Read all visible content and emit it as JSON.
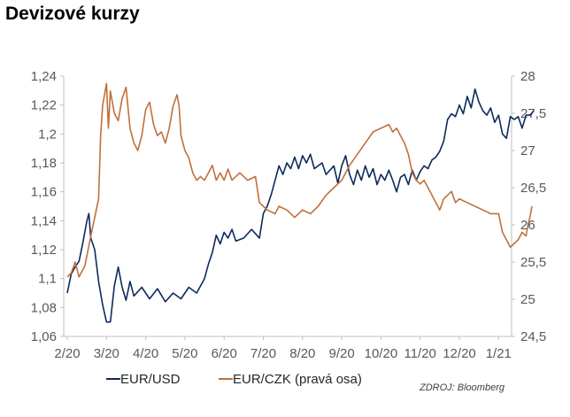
{
  "page": {
    "title": "Devizové kurzy"
  },
  "colors": {
    "eur_usd": "#0d2a5c",
    "eur_czk": "#c0703a",
    "axis": "#bfbfbf",
    "tick_text": "#595959"
  },
  "chart_data": {
    "type": "line",
    "title": "Devizové kurzy",
    "source": "ZDROJ: Bloomberg",
    "x_ticks": [
      "2/20",
      "3/20",
      "4/20",
      "5/20",
      "6/20",
      "7/20",
      "8/20",
      "9/20",
      "10/20",
      "11/20",
      "12/20",
      "1/21"
    ],
    "x_range": [
      0,
      11.9
    ],
    "y_left": {
      "ticks": [
        "1,06",
        "1,08",
        "1,1",
        "1,12",
        "1,14",
        "1,16",
        "1,18",
        "1,2",
        "1,22",
        "1,24"
      ],
      "range": [
        1.06,
        1.24
      ]
    },
    "y_right": {
      "ticks": [
        "24,5",
        "25",
        "25,5",
        "26",
        "26,5",
        "27",
        "27,5",
        "28"
      ],
      "range": [
        24.5,
        28.0
      ]
    },
    "grid": false,
    "legend_position": "bottom",
    "series": [
      {
        "name": "EUR/USD",
        "axis": "left",
        "color": "#0d2a5c",
        "points": [
          [
            0.0,
            1.09
          ],
          [
            0.1,
            1.103
          ],
          [
            0.2,
            1.108
          ],
          [
            0.3,
            1.112
          ],
          [
            0.4,
            1.125
          ],
          [
            0.5,
            1.14
          ],
          [
            0.55,
            1.145
          ],
          [
            0.6,
            1.128
          ],
          [
            0.7,
            1.12
          ],
          [
            0.8,
            1.098
          ],
          [
            0.9,
            1.082
          ],
          [
            1.0,
            1.07
          ],
          [
            1.1,
            1.07
          ],
          [
            1.2,
            1.095
          ],
          [
            1.3,
            1.108
          ],
          [
            1.4,
            1.094
          ],
          [
            1.5,
            1.085
          ],
          [
            1.6,
            1.098
          ],
          [
            1.7,
            1.088
          ],
          [
            1.9,
            1.094
          ],
          [
            2.1,
            1.086
          ],
          [
            2.3,
            1.093
          ],
          [
            2.5,
            1.084
          ],
          [
            2.7,
            1.09
          ],
          [
            2.9,
            1.086
          ],
          [
            3.1,
            1.094
          ],
          [
            3.3,
            1.09
          ],
          [
            3.5,
            1.1
          ],
          [
            3.6,
            1.11
          ],
          [
            3.7,
            1.118
          ],
          [
            3.8,
            1.13
          ],
          [
            3.9,
            1.124
          ],
          [
            4.0,
            1.132
          ],
          [
            4.1,
            1.128
          ],
          [
            4.2,
            1.134
          ],
          [
            4.3,
            1.126
          ],
          [
            4.5,
            1.128
          ],
          [
            4.7,
            1.134
          ],
          [
            4.9,
            1.128
          ],
          [
            5.0,
            1.145
          ],
          [
            5.1,
            1.15
          ],
          [
            5.2,
            1.158
          ],
          [
            5.3,
            1.168
          ],
          [
            5.4,
            1.178
          ],
          [
            5.5,
            1.172
          ],
          [
            5.6,
            1.18
          ],
          [
            5.7,
            1.176
          ],
          [
            5.8,
            1.184
          ],
          [
            5.9,
            1.176
          ],
          [
            6.0,
            1.185
          ],
          [
            6.1,
            1.18
          ],
          [
            6.2,
            1.186
          ],
          [
            6.3,
            1.176
          ],
          [
            6.5,
            1.18
          ],
          [
            6.6,
            1.172
          ],
          [
            6.8,
            1.178
          ],
          [
            6.9,
            1.166
          ],
          [
            7.0,
            1.178
          ],
          [
            7.1,
            1.185
          ],
          [
            7.2,
            1.172
          ],
          [
            7.3,
            1.165
          ],
          [
            7.4,
            1.175
          ],
          [
            7.5,
            1.168
          ],
          [
            7.6,
            1.178
          ],
          [
            7.7,
            1.17
          ],
          [
            7.8,
            1.176
          ],
          [
            7.9,
            1.165
          ],
          [
            8.0,
            1.172
          ],
          [
            8.1,
            1.168
          ],
          [
            8.2,
            1.175
          ],
          [
            8.3,
            1.168
          ],
          [
            8.4,
            1.16
          ],
          [
            8.5,
            1.17
          ],
          [
            8.6,
            1.172
          ],
          [
            8.7,
            1.165
          ],
          [
            8.8,
            1.175
          ],
          [
            8.9,
            1.168
          ],
          [
            9.0,
            1.174
          ],
          [
            9.1,
            1.178
          ],
          [
            9.2,
            1.176
          ],
          [
            9.3,
            1.182
          ],
          [
            9.4,
            1.184
          ],
          [
            9.5,
            1.188
          ],
          [
            9.6,
            1.195
          ],
          [
            9.7,
            1.21
          ],
          [
            9.8,
            1.214
          ],
          [
            9.9,
            1.212
          ],
          [
            10.0,
            1.22
          ],
          [
            10.1,
            1.214
          ],
          [
            10.2,
            1.226
          ],
          [
            10.3,
            1.218
          ],
          [
            10.4,
            1.231
          ],
          [
            10.5,
            1.222
          ],
          [
            10.6,
            1.216
          ],
          [
            10.7,
            1.213
          ],
          [
            10.8,
            1.218
          ],
          [
            10.9,
            1.208
          ],
          [
            11.0,
            1.213
          ],
          [
            11.1,
            1.2
          ],
          [
            11.2,
            1.197
          ],
          [
            11.3,
            1.212
          ],
          [
            11.4,
            1.21
          ],
          [
            11.5,
            1.212
          ],
          [
            11.6,
            1.204
          ],
          [
            11.7,
            1.213
          ],
          [
            11.8,
            1.213
          ],
          [
            11.9,
            1.216
          ]
        ]
      },
      {
        "name": "EUR/CZK (pravá osa)",
        "axis": "right",
        "color": "#c0703a",
        "points": [
          [
            0.0,
            25.3
          ],
          [
            0.1,
            25.35
          ],
          [
            0.2,
            25.5
          ],
          [
            0.3,
            25.3
          ],
          [
            0.45,
            25.45
          ],
          [
            0.6,
            25.85
          ],
          [
            0.7,
            26.1
          ],
          [
            0.8,
            26.35
          ],
          [
            0.85,
            27.2
          ],
          [
            0.9,
            27.6
          ],
          [
            1.0,
            27.9
          ],
          [
            1.05,
            27.3
          ],
          [
            1.1,
            27.8
          ],
          [
            1.2,
            27.5
          ],
          [
            1.3,
            27.4
          ],
          [
            1.4,
            27.7
          ],
          [
            1.5,
            27.85
          ],
          [
            1.6,
            27.3
          ],
          [
            1.7,
            27.1
          ],
          [
            1.8,
            27.0
          ],
          [
            1.9,
            27.2
          ],
          [
            2.0,
            27.55
          ],
          [
            2.1,
            27.65
          ],
          [
            2.2,
            27.35
          ],
          [
            2.3,
            27.2
          ],
          [
            2.4,
            27.25
          ],
          [
            2.5,
            27.1
          ],
          [
            2.6,
            27.3
          ],
          [
            2.7,
            27.6
          ],
          [
            2.8,
            27.75
          ],
          [
            2.85,
            27.6
          ],
          [
            2.9,
            27.2
          ],
          [
            3.0,
            27.0
          ],
          [
            3.1,
            26.9
          ],
          [
            3.2,
            26.7
          ],
          [
            3.3,
            26.6
          ],
          [
            3.4,
            26.65
          ],
          [
            3.5,
            26.6
          ],
          [
            3.6,
            26.7
          ],
          [
            3.7,
            26.8
          ],
          [
            3.8,
            26.6
          ],
          [
            3.9,
            26.7
          ],
          [
            4.0,
            26.6
          ],
          [
            4.1,
            26.75
          ],
          [
            4.2,
            26.6
          ],
          [
            4.4,
            26.7
          ],
          [
            4.6,
            26.6
          ],
          [
            4.8,
            26.65
          ],
          [
            4.9,
            26.3
          ],
          [
            5.0,
            26.25
          ],
          [
            5.1,
            26.2
          ],
          [
            5.3,
            26.15
          ],
          [
            5.4,
            26.25
          ],
          [
            5.6,
            26.2
          ],
          [
            5.8,
            26.1
          ],
          [
            6.0,
            26.2
          ],
          [
            6.2,
            26.15
          ],
          [
            6.4,
            26.25
          ],
          [
            6.6,
            26.4
          ],
          [
            6.8,
            26.5
          ],
          [
            7.0,
            26.6
          ],
          [
            7.2,
            26.8
          ],
          [
            7.4,
            26.95
          ],
          [
            7.6,
            27.1
          ],
          [
            7.8,
            27.25
          ],
          [
            8.0,
            27.3
          ],
          [
            8.2,
            27.35
          ],
          [
            8.3,
            27.25
          ],
          [
            8.4,
            27.3
          ],
          [
            8.5,
            27.2
          ],
          [
            8.6,
            27.1
          ],
          [
            8.7,
            26.95
          ],
          [
            8.8,
            26.7
          ],
          [
            8.9,
            26.6
          ],
          [
            9.0,
            26.55
          ],
          [
            9.1,
            26.6
          ],
          [
            9.2,
            26.5
          ],
          [
            9.3,
            26.4
          ],
          [
            9.4,
            26.3
          ],
          [
            9.5,
            26.2
          ],
          [
            9.6,
            26.35
          ],
          [
            9.7,
            26.4
          ],
          [
            9.8,
            26.45
          ],
          [
            9.9,
            26.3
          ],
          [
            10.0,
            26.35
          ],
          [
            10.2,
            26.3
          ],
          [
            10.4,
            26.25
          ],
          [
            10.6,
            26.2
          ],
          [
            10.8,
            26.15
          ],
          [
            11.0,
            26.15
          ],
          [
            11.1,
            25.9
          ],
          [
            11.2,
            25.8
          ],
          [
            11.3,
            25.7
          ],
          [
            11.4,
            25.75
          ],
          [
            11.5,
            25.8
          ],
          [
            11.6,
            25.9
          ],
          [
            11.7,
            25.85
          ],
          [
            11.75,
            26.0
          ],
          [
            11.8,
            26.1
          ],
          [
            11.85,
            26.25
          ]
        ]
      }
    ]
  }
}
